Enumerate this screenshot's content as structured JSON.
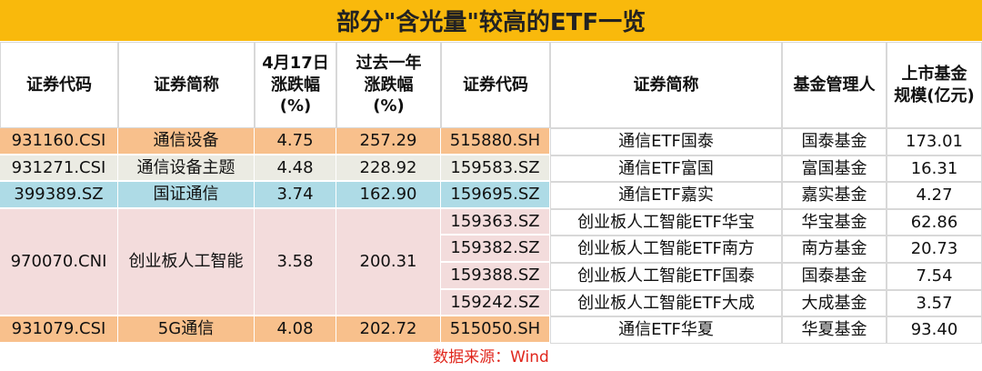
{
  "title": "部分\"含光量\"较高的ETF一览",
  "header": {
    "columns": [
      [
        "证券代码"
      ],
      [
        "证券简称"
      ],
      [
        "4月17日",
        "涨跌幅",
        "(%)"
      ],
      [
        "过去一年",
        "涨跌幅",
        "(%)"
      ],
      [
        "证券代码"
      ],
      [
        "证券简称"
      ],
      [
        "基金管理人"
      ],
      [
        "上市基金",
        "规模(亿元)"
      ]
    ]
  },
  "groups": [
    {
      "code": "931160.CSI",
      "name": "通信设备",
      "change_day": "4.75",
      "change_year": "257.29",
      "etfs": [
        {
          "code": "515880.SH",
          "name": "通信ETF国泰",
          "manager": "国泰基金",
          "size": "173.01"
        }
      ]
    },
    {
      "code": "931271.CSI",
      "name": "通信设备主题",
      "change_day": "4.48",
      "change_year": "228.92",
      "etfs": [
        {
          "code": "159583.SZ",
          "name": "通信ETF富国",
          "manager": "富国基金",
          "size": "16.31"
        }
      ]
    },
    {
      "code": "399389.SZ",
      "name": "国证通信",
      "change_day": "3.74",
      "change_year": "162.90",
      "etfs": [
        {
          "code": "159695.SZ",
          "name": "通信ETF嘉实",
          "manager": "嘉实基金",
          "size": "4.27"
        }
      ]
    },
    {
      "code": "970070.CNI",
      "name": "创业板人工智能",
      "change_day": "3.58",
      "change_year": "200.31",
      "etfs": [
        {
          "code": "159363.SZ",
          "name": "创业板人工智能ETF华宝",
          "manager": "华宝基金",
          "size": "62.86"
        },
        {
          "code": "159382.SZ",
          "name": "创业板人工智能ETF南方",
          "manager": "南方基金",
          "size": "20.73"
        },
        {
          "code": "159388.SZ",
          "name": "创业板人工智能ETF国泰",
          "manager": "国泰基金",
          "size": "7.54"
        },
        {
          "code": "159242.SZ",
          "name": "创业板人工智能ETF大成",
          "manager": "大成基金",
          "size": "3.57"
        }
      ]
    },
    {
      "code": "931079.CSI",
      "name": "5G通信",
      "change_day": "4.08",
      "change_year": "202.72",
      "etfs": [
        {
          "code": "515050.SH",
          "name": "通信ETF华夏",
          "manager": "华夏基金",
          "size": "93.40"
        }
      ]
    }
  ],
  "source": "数据来源：Wind"
}
